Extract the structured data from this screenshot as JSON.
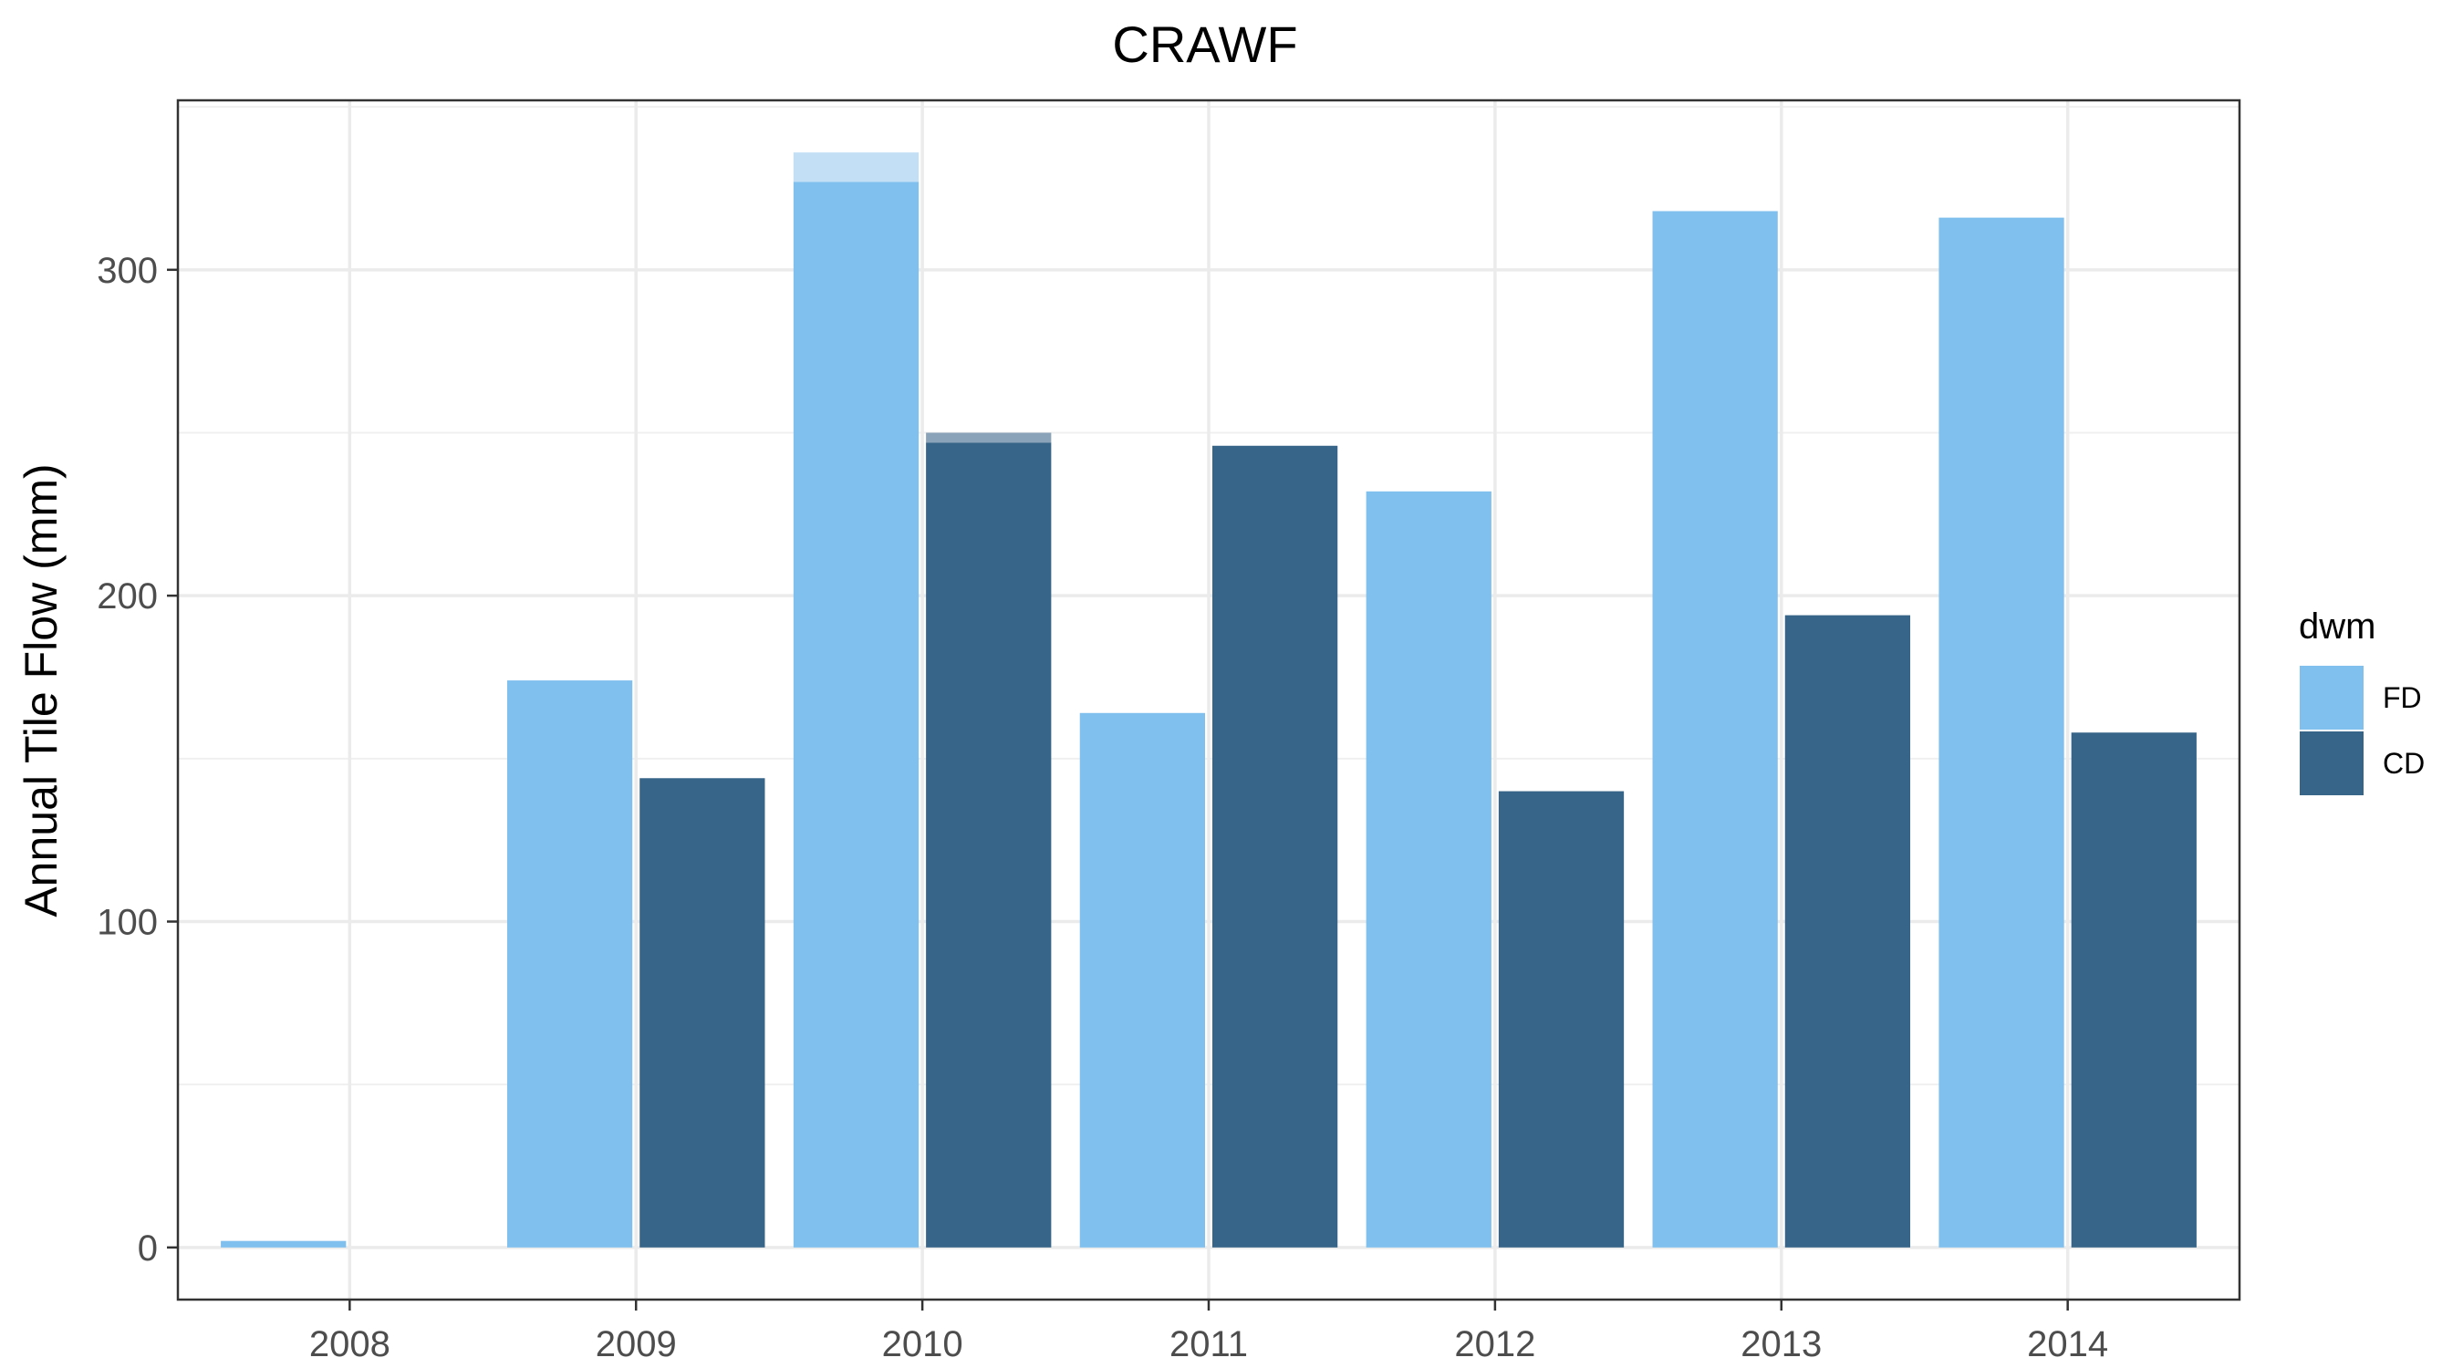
{
  "chart_data": {
    "type": "bar",
    "title": "CRAWF",
    "xlabel": "",
    "ylabel": "Annual Tile Flow (mm)",
    "categories": [
      "2008",
      "2009",
      "2010",
      "2011",
      "2012",
      "2013",
      "2014"
    ],
    "series": [
      {
        "name": "FD",
        "color": "#80c0ee",
        "values": [
          2,
          174,
          327,
          164,
          232,
          318,
          316
        ]
      },
      {
        "name": "CD",
        "color": "#376589",
        "values": [
          null,
          144,
          247,
          246,
          140,
          194,
          158
        ]
      }
    ],
    "overlay": [
      {
        "series": "FD",
        "category": "2010",
        "from": 327,
        "to": 336,
        "color": "#c2dff6"
      },
      {
        "series": "CD",
        "category": "2010",
        "from": 247,
        "to": 250,
        "color": "#8aa3b8"
      }
    ],
    "yticks": [
      0,
      100,
      200,
      300
    ],
    "ylim": [
      -16,
      352
    ],
    "grid": true,
    "legend": {
      "title": "dwm",
      "placement": "right"
    }
  }
}
